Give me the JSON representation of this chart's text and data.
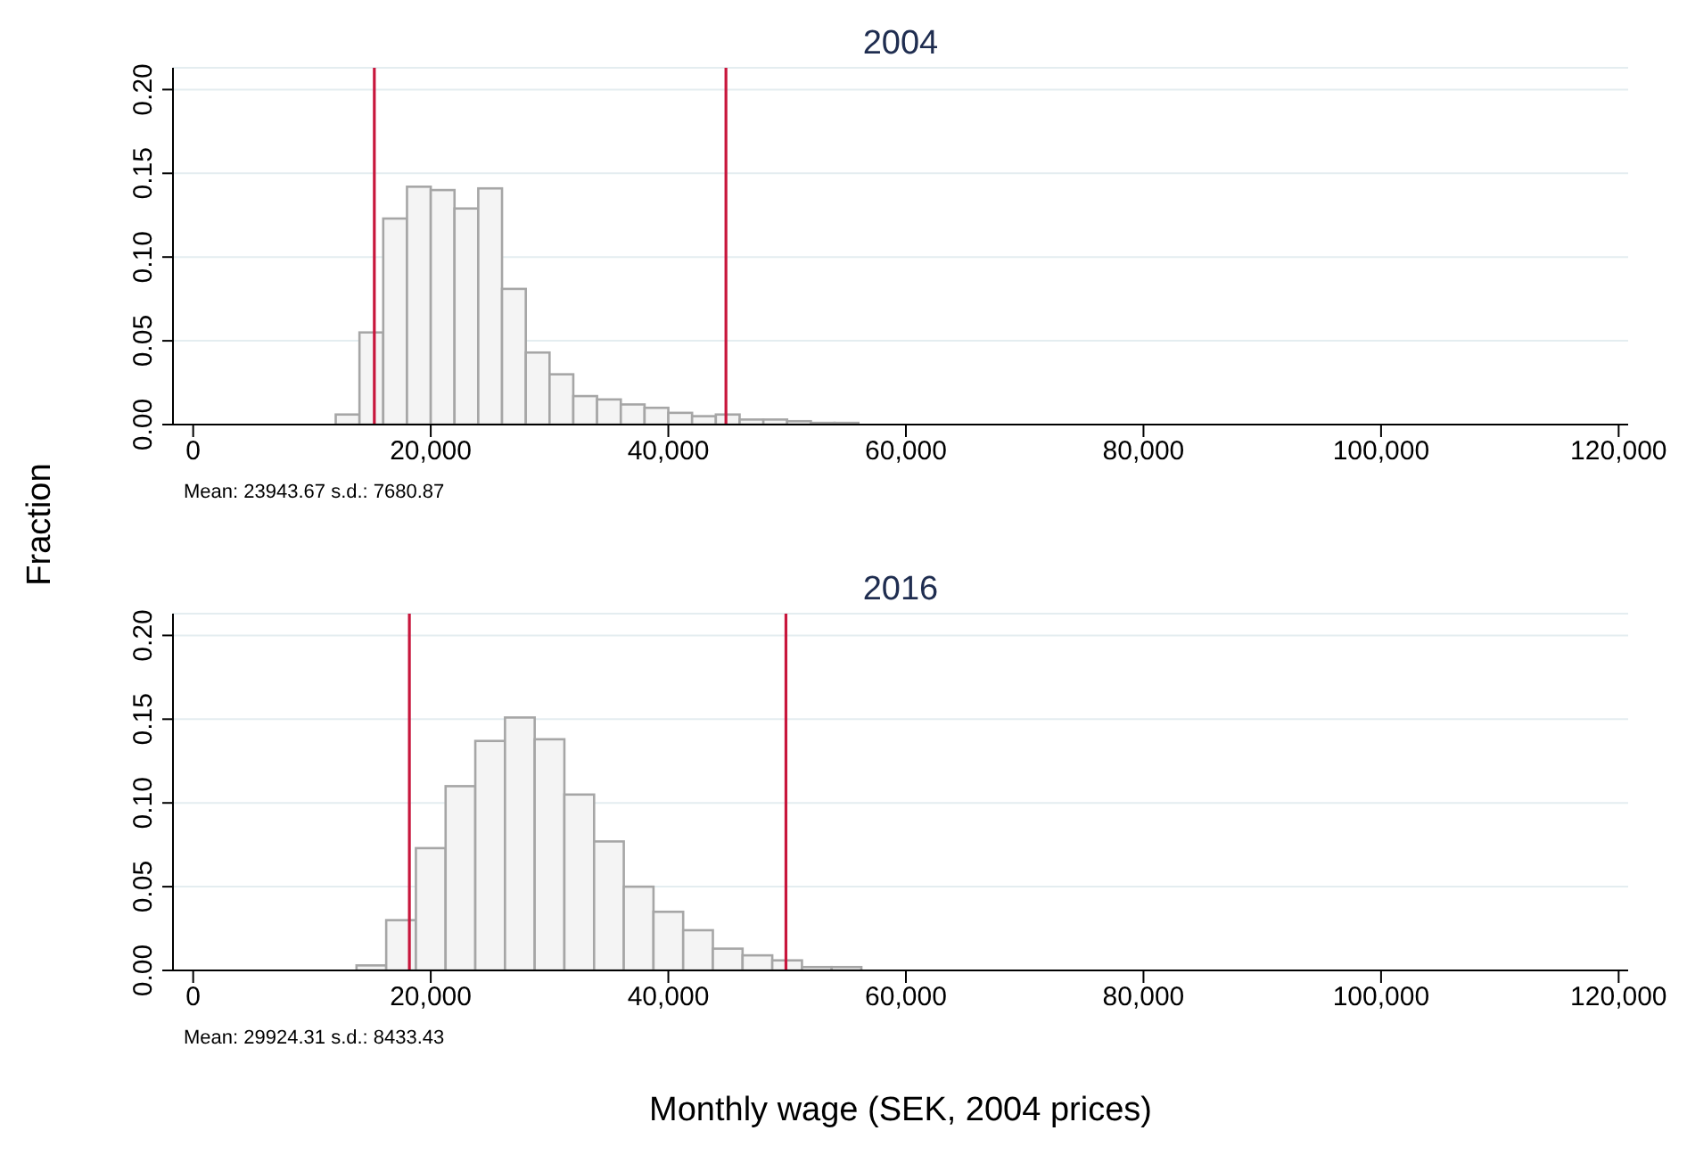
{
  "chart_data": [
    {
      "type": "histogram",
      "title": "2004",
      "ylabel": "Fraction",
      "annotations": [
        "Mean: 23943.67 s.d.: 7680.87"
      ],
      "color": "#f4f4f4",
      "bins": [
        12000,
        14000,
        16000,
        18000,
        20000,
        22000,
        24000,
        26000,
        28000,
        30000,
        32000,
        34000,
        36000,
        38000,
        40000,
        42000,
        44000,
        46000,
        48000,
        50000,
        52000,
        54000,
        56000,
        58000,
        60000,
        62000,
        64000,
        66000,
        68000,
        70000,
        72000,
        74000,
        76000,
        78000,
        80000,
        82000,
        84000,
        86000,
        88000,
        90000,
        92000
      ],
      "values": [
        0.006,
        0.055,
        0.123,
        0.142,
        0.14,
        0.129,
        0.141,
        0.081,
        0.043,
        0.03,
        0.017,
        0.015,
        0.012,
        0.01,
        0.007,
        0.005,
        0.006,
        0.003,
        0.003,
        0.002,
        0.001,
        0.001,
        0,
        0,
        0,
        0,
        0,
        0,
        0,
        0,
        0,
        0,
        0,
        0,
        0,
        0,
        0,
        0,
        0,
        0
      ],
      "xlim": [
        -1700,
        120800
      ],
      "ylim": [
        0,
        0.213
      ],
      "xticks": [
        {
          "value": 0,
          "label": "0"
        },
        {
          "value": 20000,
          "label": "20,000"
        },
        {
          "value": 40000,
          "label": "40,000"
        },
        {
          "value": 60000,
          "label": "60,000"
        },
        {
          "value": 80000,
          "label": "80,000"
        },
        {
          "value": 100000,
          "label": "100,000"
        },
        {
          "value": 120000,
          "label": "120,000"
        }
      ],
      "yticks": [
        {
          "value": 0,
          "label": "0.00"
        },
        {
          "value": 0.05,
          "label": "0.05"
        },
        {
          "value": 0.1,
          "label": "0.10"
        },
        {
          "value": 0.15,
          "label": "0.15"
        },
        {
          "value": 0.2,
          "label": "0.20"
        }
      ],
      "grid": "y",
      "ref_lines": [
        {
          "axis": "x",
          "value": 15250,
          "color": "#c8163c"
        },
        {
          "axis": "x",
          "value": 44850,
          "color": "#c8163c"
        }
      ]
    },
    {
      "type": "histogram",
      "title": "2016",
      "xlabel": "Monthly wage (SEK, 2004 prices)",
      "annotations": [
        "Mean: 29924.31 s.d.: 8433.43"
      ],
      "color": "#f4f4f4",
      "bins": [
        13750,
        16250,
        18750,
        21250,
        23750,
        26250,
        28750,
        31250,
        33750,
        36250,
        38750,
        41250,
        43750,
        46250,
        48750,
        51250,
        53750,
        56250,
        58750,
        61250,
        63750,
        66250,
        68750,
        71250,
        73750,
        76250,
        78750,
        81250,
        83750,
        86250,
        88750,
        91250,
        93750,
        96250,
        98750,
        101250,
        103750,
        106250,
        108750,
        111250,
        113750
      ],
      "values": [
        0.003,
        0.03,
        0.073,
        0.11,
        0.137,
        0.151,
        0.138,
        0.105,
        0.077,
        0.05,
        0.035,
        0.024,
        0.013,
        0.009,
        0.006,
        0.002,
        0.002,
        0,
        0,
        0,
        0,
        0,
        0,
        0,
        0,
        0,
        0,
        0,
        0,
        0,
        0,
        0,
        0,
        0,
        0,
        0,
        0,
        0,
        0,
        0
      ],
      "xlim": [
        -1700,
        120800
      ],
      "ylim": [
        0,
        0.213
      ],
      "xticks": [
        {
          "value": 0,
          "label": "0"
        },
        {
          "value": 20000,
          "label": "20,000"
        },
        {
          "value": 40000,
          "label": "40,000"
        },
        {
          "value": 60000,
          "label": "60,000"
        },
        {
          "value": 80000,
          "label": "80,000"
        },
        {
          "value": 100000,
          "label": "100,000"
        },
        {
          "value": 120000,
          "label": "120,000"
        }
      ],
      "yticks": [
        {
          "value": 0,
          "label": "0.00"
        },
        {
          "value": 0.05,
          "label": "0.05"
        },
        {
          "value": 0.1,
          "label": "0.10"
        },
        {
          "value": 0.15,
          "label": "0.15"
        },
        {
          "value": 0.2,
          "label": "0.20"
        }
      ],
      "grid": "y",
      "ref_lines": [
        {
          "axis": "x",
          "value": 18200,
          "color": "#c8163c"
        },
        {
          "axis": "x",
          "value": 49900,
          "color": "#c8163c"
        }
      ]
    }
  ]
}
